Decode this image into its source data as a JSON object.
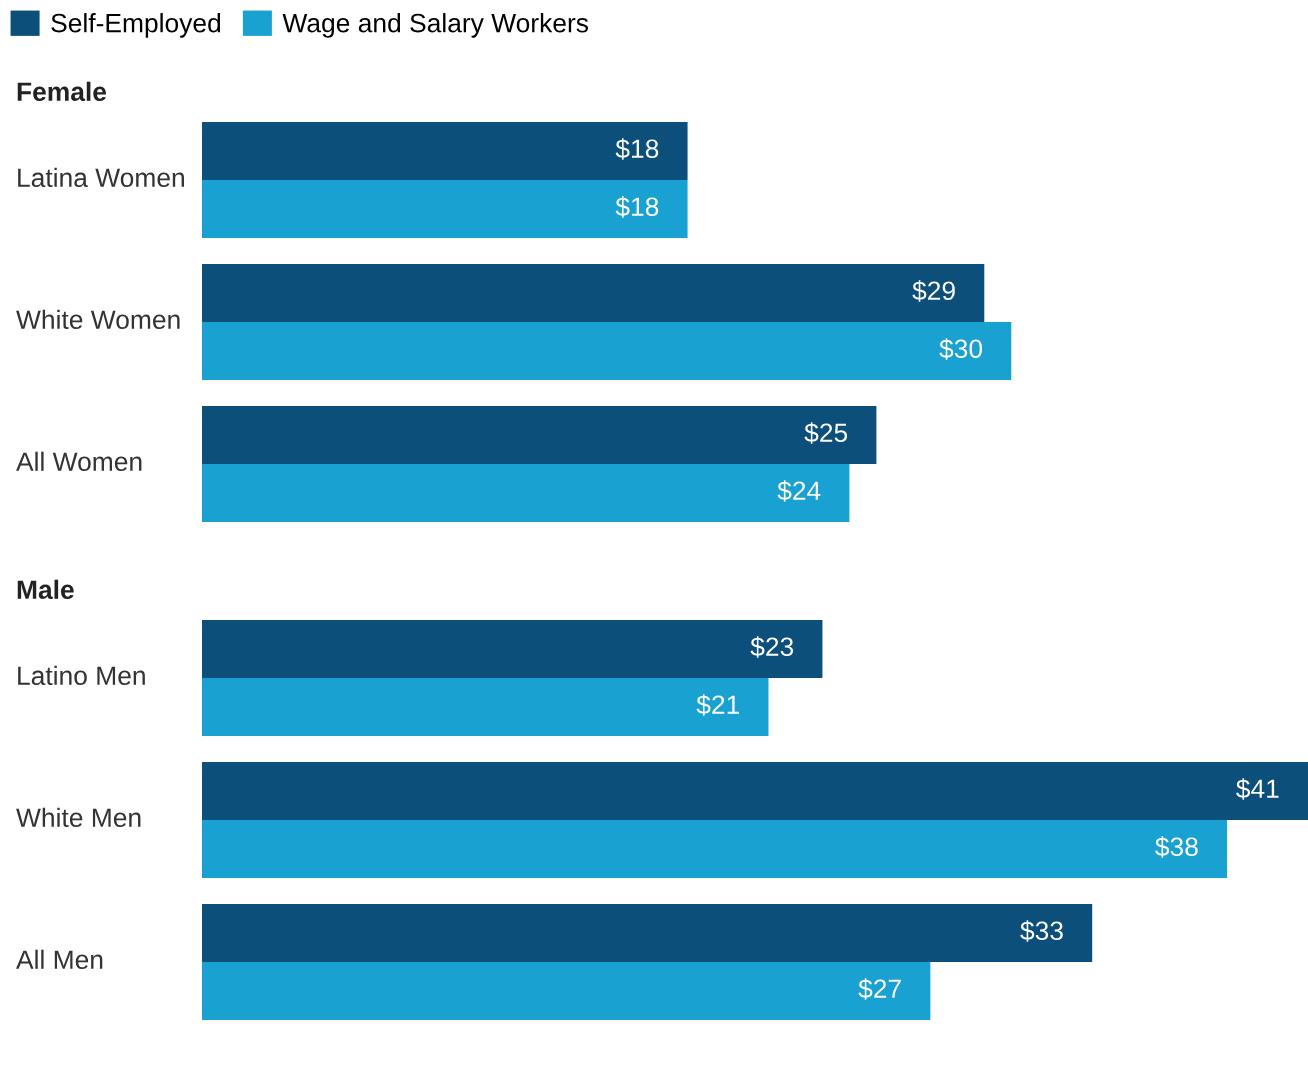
{
  "chart_data": {
    "type": "bar",
    "orientation": "horizontal",
    "categories": [
      "Latina Women",
      "White Women",
      "All Women",
      "Latino Men",
      "White Men",
      "All Men"
    ],
    "series": [
      {
        "name": "Self-Employed",
        "color": "#0b4f7a",
        "values": [
          18,
          29,
          25,
          23,
          41,
          33
        ],
        "value_labels": [
          "$18",
          "$29",
          "$25",
          "$23",
          "$41",
          "$33"
        ]
      },
      {
        "name": "Wage and Salary Workers",
        "color": "#18a1d1",
        "values": [
          18,
          30,
          24,
          21,
          38,
          27
        ],
        "value_labels": [
          "$18",
          "$30",
          "$24",
          "$21",
          "$38",
          "$27"
        ]
      }
    ],
    "annotations": [
      "Female",
      "Male"
    ],
    "legend": "top left"
  }
}
